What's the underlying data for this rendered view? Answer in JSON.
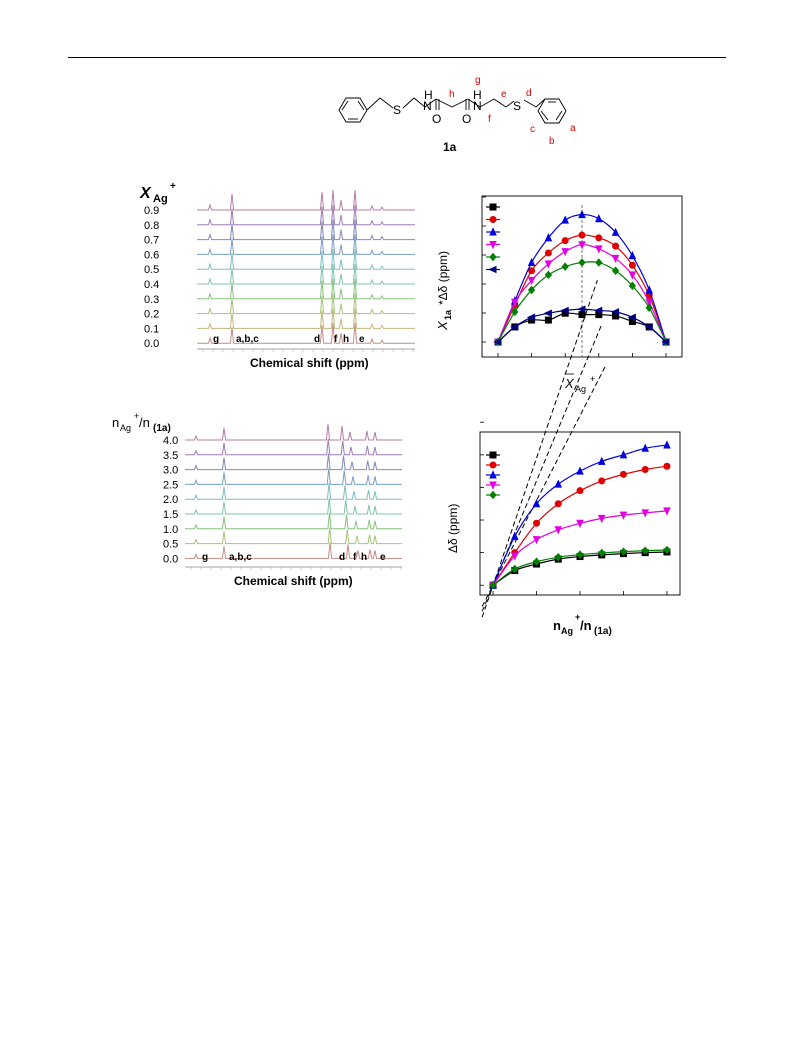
{
  "molecule": {
    "compound_label": "1a",
    "atoms": {
      "S1": "S",
      "NH1": "H",
      "N1": "N",
      "NH2": "H",
      "N2": "N",
      "S2": "S",
      "O1": "O",
      "O2": "O"
    },
    "proton_labels": {
      "g": "g",
      "h": "h",
      "e": "e",
      "f": "f",
      "d": "d",
      "c": "c",
      "b": "b",
      "a": "a"
    }
  },
  "panel_a": {
    "ylabel_main": "X",
    "ylabel_sub": "Ag",
    "ylabel_sup": "+",
    "trace_labels": [
      "0.9",
      "0.8",
      "0.7",
      "0.6",
      "0.5",
      "0.4",
      "0.3",
      "0.2",
      "0.1",
      "0.0"
    ],
    "peak_labels": [
      "g",
      "a,b,c",
      "d",
      "f",
      "h",
      "e"
    ],
    "xlabel": "Chemical shift (ppm)",
    "colors": [
      "#b57fa6",
      "#a07ab5",
      "#8289b8",
      "#7a9fc2",
      "#7dbfc4",
      "#7fc4a6",
      "#86c27e",
      "#a7c47a",
      "#c2b77e",
      "#c48f86"
    ]
  },
  "panel_b": {
    "ylabel_main": "X",
    "ylabel_sub": "1a",
    "ylabel_rest": " *Δδ (ppm)",
    "xlabel_main": "X",
    "xlabel_sub": "Ag",
    "xlabel_sup": "+"
  },
  "panel_c": {
    "ylabel_n1": "n",
    "ylabel_sub1": "Ag",
    "ylabel_sup": "+",
    "ylabel_n2": "/n",
    "ylabel_sub2": "(1a)",
    "trace_labels": [
      "4.0",
      "3.5",
      "3.0",
      "2.5",
      "2.0",
      "1.5",
      "1.0",
      "0.5",
      "0.0"
    ],
    "peak_labels": [
      "g",
      "a,b,c",
      "d",
      "f",
      "h",
      "e"
    ],
    "xlabel": "Chemical shift (ppm)",
    "colors": [
      "#b57fa6",
      "#a07ab5",
      "#8289b8",
      "#7a9fc2",
      "#7dbfc4",
      "#7fc4a6",
      "#86c27e",
      "#a7c47a",
      "#c48f86"
    ]
  },
  "panel_d": {
    "ylabel": "Δδ (ppm)",
    "xlabel_n1": "n",
    "xlabel_sub1": "Ag",
    "xlabel_sup": "+",
    "xlabel_n2": "/n",
    "xlabel_sub2": "(1a)"
  },
  "chart_data": [
    {
      "type": "scatter",
      "title": "",
      "xlabel": "X_Ag+",
      "ylabel": "X_1a *Δδ (ppm)",
      "xlim": [
        0,
        1
      ],
      "ylim": [
        0,
        1
      ],
      "x": [
        0.0,
        0.1,
        0.2,
        0.3,
        0.4,
        0.5,
        0.6,
        0.7,
        0.8,
        0.9,
        1.0
      ],
      "series": [
        {
          "values": [
            0.0,
            0.11,
            0.16,
            0.16,
            0.21,
            0.2,
            0.2,
            0.19,
            0.15,
            0.11,
            0.0
          ],
          "color": "#000000",
          "marker": "square"
        },
        {
          "values": [
            0.0,
            0.27,
            0.52,
            0.65,
            0.74,
            0.78,
            0.76,
            0.7,
            0.56,
            0.34,
            0.0
          ],
          "color": "#e00000",
          "marker": "circle"
        },
        {
          "values": [
            0.0,
            0.3,
            0.58,
            0.76,
            0.89,
            0.93,
            0.9,
            0.8,
            0.63,
            0.38,
            0.0
          ],
          "color": "#0000e0",
          "marker": "triangle-up"
        },
        {
          "values": [
            0.0,
            0.29,
            0.45,
            0.57,
            0.66,
            0.71,
            0.68,
            0.61,
            0.49,
            0.29,
            0.0
          ],
          "color": "#e000e0",
          "marker": "triangle-down"
        },
        {
          "values": [
            0.0,
            0.22,
            0.38,
            0.49,
            0.55,
            0.58,
            0.58,
            0.52,
            0.41,
            0.25,
            0.0
          ],
          "color": "#008000",
          "marker": "diamond"
        },
        {
          "values": [
            0.0,
            0.11,
            0.18,
            0.21,
            0.23,
            0.24,
            0.23,
            0.22,
            0.18,
            0.11,
            0.0
          ],
          "color": "#000080",
          "marker": "triangle-left"
        }
      ],
      "vline_x": 0.5,
      "legend": "top-left"
    },
    {
      "type": "scatter",
      "title": "",
      "xlabel": "n_Ag+/n_(1a)",
      "ylabel": "Δδ (ppm)",
      "xlim": [
        -0.3,
        4.3
      ],
      "ylim": [
        -0.3,
        4.7
      ],
      "x": [
        0.0,
        0.5,
        1.0,
        1.5,
        2.0,
        2.5,
        3.0,
        3.5,
        4.0
      ],
      "series": [
        {
          "values": [
            0.0,
            0.45,
            0.65,
            0.8,
            0.88,
            0.93,
            0.97,
            1.0,
            1.02
          ],
          "color": "#000000",
          "marker": "square"
        },
        {
          "values": [
            0.0,
            1.0,
            1.9,
            2.5,
            2.9,
            3.2,
            3.4,
            3.55,
            3.65
          ],
          "color": "#e00000",
          "marker": "circle"
        },
        {
          "values": [
            0.0,
            1.5,
            2.5,
            3.1,
            3.5,
            3.8,
            4.0,
            4.2,
            4.3
          ],
          "color": "#0000e0",
          "marker": "triangle-up"
        },
        {
          "values": [
            0.0,
            0.9,
            1.4,
            1.7,
            1.9,
            2.05,
            2.15,
            2.22,
            2.28
          ],
          "color": "#e000e0",
          "marker": "triangle-down"
        },
        {
          "values": [
            0.0,
            0.5,
            0.72,
            0.86,
            0.94,
            0.99,
            1.03,
            1.06,
            1.08
          ],
          "color": "#008000",
          "marker": "diamond"
        }
      ],
      "tangent_lines": 3,
      "legend": "top-left"
    }
  ]
}
